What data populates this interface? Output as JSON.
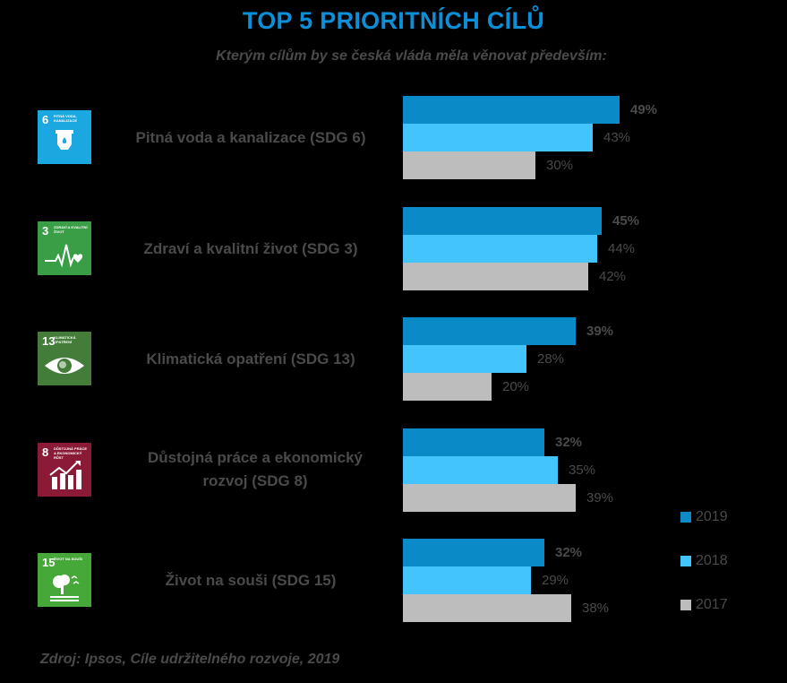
{
  "title": "TOP 5 PRIORITNÍCH CÍLŮ",
  "subtitle": "Kterým cílům by se česká vláda měla věnovat především:",
  "source": "Zdroj: Ipsos, Cíle udržitelného rozvoje, 2019",
  "colors": {
    "2019": "#0a8bc8",
    "2018": "#44c4fc",
    "2017": "#bdbdbd"
  },
  "legend": [
    {
      "label": "2019",
      "color": "#0a8bc8"
    },
    {
      "label": "2018",
      "color": "#44c4fc"
    },
    {
      "label": "2017",
      "color": "#bdbdbd"
    }
  ],
  "groups": [
    {
      "label": "Pitná voda a kanalizace (SDG 6)",
      "icon": {
        "number": "6",
        "text": "PITNÁ VODA, KANALIZACE",
        "color": "#1ba8e0",
        "symbol": "water-icon"
      },
      "values": [
        "49%",
        "43%",
        "30%"
      ]
    },
    {
      "label": "Zdraví a kvalitní život (SDG 3)",
      "icon": {
        "number": "3",
        "text": "ZDRAVÍ A KVALITNÍ ŽIVOT",
        "color": "#3a9e46",
        "symbol": "heartbeat-icon"
      },
      "values": [
        "45%",
        "44%",
        "42%"
      ]
    },
    {
      "label": "Klimatická opatření (SDG 13)",
      "icon": {
        "number": "13",
        "text": "KLIMATICKÁ OPATŘENÍ",
        "color": "#447c3a",
        "symbol": "eye-globe-icon"
      },
      "values": [
        "39%",
        "28%",
        "20%"
      ]
    },
    {
      "label": "Důstojná práce a ekonomický rozvoj (SDG 8)",
      "icon": {
        "number": "8",
        "text": "DŮSTOJNÁ PRÁCE A EKONOMICKÝ RŮST",
        "color": "#8b1a37",
        "symbol": "growth-chart-icon"
      },
      "values": [
        "32%",
        "35%",
        "39%"
      ]
    },
    {
      "label": "Život na souši (SDG 15)",
      "icon": {
        "number": "15",
        "text": "ŽIVOT NA SOUŠI",
        "color": "#47a83a",
        "symbol": "tree-birds-icon"
      },
      "values": [
        "32%",
        "29%",
        "38%"
      ]
    }
  ],
  "chart_data": {
    "type": "bar",
    "orientation": "horizontal",
    "title": "TOP 5 PRIORITNÍCH CÍLŮ",
    "subtitle": "Kterým cílům by se česká vláda měla věnovat především:",
    "categories": [
      "Pitná voda a kanalizace (SDG 6)",
      "Zdraví a kvalitní život (SDG 3)",
      "Klimatická opatření (SDG 13)",
      "Důstojná práce a ekonomický rozvoj (SDG 8)",
      "Život na souši (SDG 15)"
    ],
    "series": [
      {
        "name": "2019",
        "color": "#0a8bc8",
        "values": [
          49,
          45,
          39,
          32,
          32
        ]
      },
      {
        "name": "2018",
        "color": "#44c4fc",
        "values": [
          43,
          44,
          28,
          35,
          29
        ]
      },
      {
        "name": "2017",
        "color": "#bdbdbd",
        "values": [
          30,
          42,
          20,
          39,
          38
        ]
      }
    ],
    "unit": "%",
    "xlabel": "",
    "ylabel": "",
    "grid": false,
    "legend_position": "right-bottom",
    "annotation": "Zdroj: Ipsos, Cíle udržitelného rozvoje, 2019"
  }
}
